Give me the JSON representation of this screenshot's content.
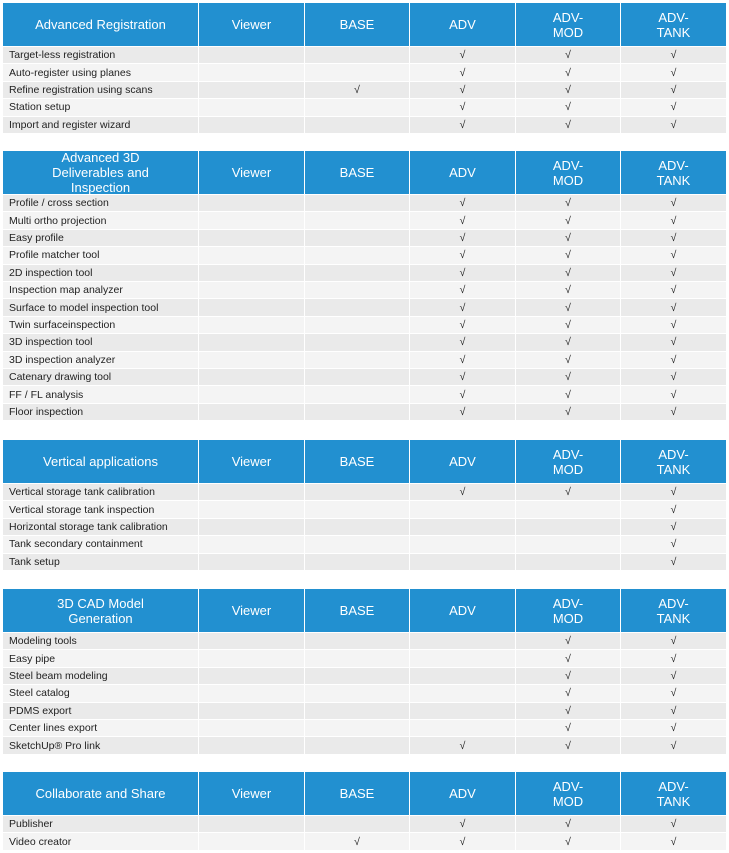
{
  "sections": [
    {
      "header": [
        "Advanced Registration",
        "Viewer",
        "BASE",
        "ADV",
        "ADV-MOD",
        "ADV-TANK"
      ],
      "rows": [
        [
          "Target-less registration",
          null,
          null,
          "√",
          "√",
          "√"
        ],
        [
          "Auto-register using planes",
          null,
          null,
          "√",
          "√",
          "√"
        ],
        [
          "Refine registration using scans",
          null,
          "√",
          "√",
          "√",
          "√"
        ],
        [
          "Station setup",
          null,
          null,
          "√",
          "√",
          "√"
        ],
        [
          "Import and register wizard",
          null,
          null,
          "√",
          "√",
          "√"
        ]
      ]
    },
    {
      "header": [
        "Advanced 3D Deliverables and Inspection",
        "Viewer",
        "BASE",
        "ADV",
        "ADV-MOD",
        "ADV-TANK"
      ],
      "rows": [
        [
          "Profile / cross section",
          null,
          null,
          "√",
          "√",
          "√"
        ],
        [
          "Multi ortho projection",
          null,
          null,
          "√",
          "√",
          "√"
        ],
        [
          "Easy profile",
          null,
          null,
          "√",
          "√",
          "√"
        ],
        [
          "Profile matcher tool",
          null,
          null,
          "√",
          "√",
          "√"
        ],
        [
          "2D inspection tool",
          null,
          null,
          "√",
          "√",
          "√"
        ],
        [
          "Inspection map analyzer",
          null,
          null,
          "√",
          "√",
          "√"
        ],
        [
          "Surface to model inspection tool",
          null,
          null,
          "√",
          "√",
          "√"
        ],
        [
          "Twin surfaceinspection",
          null,
          null,
          "√",
          "√",
          "√"
        ],
        [
          "3D inspection tool",
          null,
          null,
          "√",
          "√",
          "√"
        ],
        [
          "3D inspection analyzer",
          null,
          null,
          "√",
          "√",
          "√"
        ],
        [
          "Catenary drawing tool",
          null,
          null,
          "√",
          "√",
          "√"
        ],
        [
          "FF / FL analysis",
          null,
          null,
          "√",
          "√",
          "√"
        ],
        [
          "Floor inspection",
          null,
          null,
          "√",
          "√",
          "√"
        ]
      ]
    },
    {
      "header": [
        "Vertical applications",
        "Viewer",
        "BASE",
        "ADV",
        "ADV-MOD",
        "ADV-TANK"
      ],
      "rows": [
        [
          "Vertical storage tank calibration",
          null,
          null,
          "√",
          "√",
          "√"
        ],
        [
          "Vertical storage tank inspection",
          null,
          null,
          null,
          null,
          "√"
        ],
        [
          "Horizontal storage tank calibration",
          null,
          null,
          null,
          null,
          "√"
        ],
        [
          "Tank secondary containment",
          null,
          null,
          null,
          null,
          "√"
        ],
        [
          "Tank setup",
          null,
          null,
          null,
          null,
          "√"
        ]
      ]
    },
    {
      "header": [
        "3D CAD Model Generation",
        "Viewer",
        "BASE",
        "ADV",
        "ADV-MOD",
        "ADV-TANK"
      ],
      "rows": [
        [
          "Modeling tools",
          null,
          null,
          null,
          "√",
          "√"
        ],
        [
          "Easy pipe",
          null,
          null,
          null,
          "√",
          "√"
        ],
        [
          "Steel beam modeling",
          null,
          null,
          null,
          "√",
          "√"
        ],
        [
          "Steel catalog",
          null,
          null,
          null,
          "√",
          "√"
        ],
        [
          "PDMS export",
          null,
          null,
          null,
          "√",
          "√"
        ],
        [
          "Center lines export",
          null,
          null,
          null,
          "√",
          "√"
        ],
        [
          "SketchUp® Pro link",
          null,
          null,
          "√",
          "√",
          "√"
        ]
      ]
    },
    {
      "header": [
        "Collaborate and Share",
        "Viewer",
        "BASE",
        "ADV",
        "ADV-MOD",
        "ADV-TANK"
      ],
      "rows": [
        [
          "Publisher",
          null,
          null,
          "√",
          "√",
          "√"
        ],
        [
          "Video creator",
          null,
          "√",
          "√",
          "√",
          "√"
        ]
      ]
    }
  ]
}
